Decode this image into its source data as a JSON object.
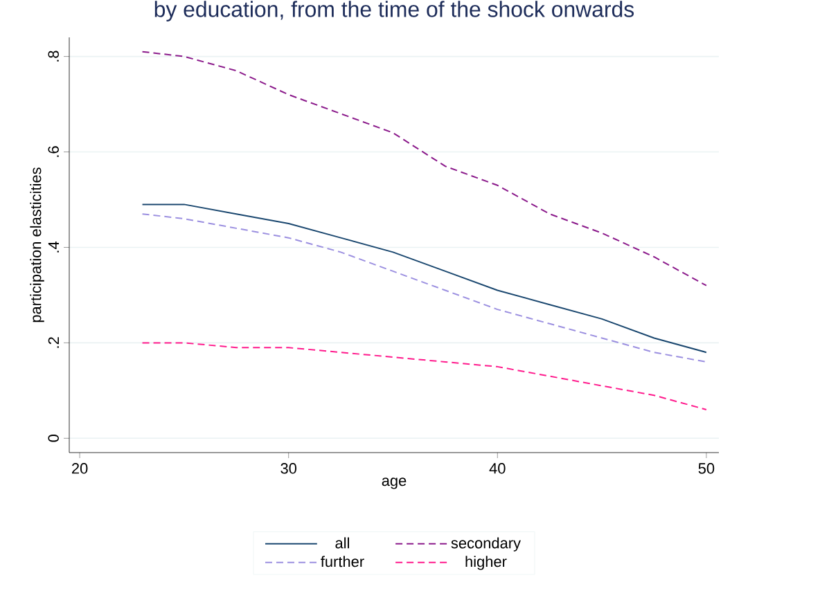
{
  "chart_data": {
    "type": "line",
    "title": "by education, from the time of the shock onwards",
    "xlabel": "age",
    "ylabel": "participation elasticities",
    "x": [
      23,
      25,
      27.5,
      30,
      32.5,
      35,
      37.5,
      40,
      42.5,
      45,
      47.5,
      50
    ],
    "series": [
      {
        "name": "all",
        "color": "#1a476f",
        "line_style": "solid",
        "values": [
          0.49,
          0.49,
          0.47,
          0.45,
          0.42,
          0.39,
          0.35,
          0.31,
          0.28,
          0.25,
          0.21,
          0.18
        ]
      },
      {
        "name": "secondary",
        "color": "#8b1a8b",
        "line_style": "dashed",
        "values": [
          0.81,
          0.8,
          0.77,
          0.72,
          0.68,
          0.64,
          0.57,
          0.53,
          0.47,
          0.43,
          0.38,
          0.32
        ]
      },
      {
        "name": "further",
        "color": "#9b8fe0",
        "line_style": "dashed",
        "values": [
          0.47,
          0.46,
          0.44,
          0.42,
          0.39,
          0.35,
          0.31,
          0.27,
          0.24,
          0.21,
          0.18,
          0.16
        ]
      },
      {
        "name": "higher",
        "color": "#ff1a8c",
        "line_style": "dashed",
        "values": [
          0.2,
          0.2,
          0.19,
          0.19,
          0.18,
          0.17,
          0.16,
          0.15,
          0.13,
          0.11,
          0.09,
          0.06
        ]
      }
    ],
    "xlim": [
      19.5,
      50.6
    ],
    "ylim": [
      -0.03,
      0.84
    ],
    "xticks": [
      20,
      30,
      40,
      50
    ],
    "yticks": [
      {
        "value": 0,
        "label": "0"
      },
      {
        "value": 0.2,
        "label": ".2"
      },
      {
        "value": 0.4,
        "label": ".4"
      },
      {
        "value": 0.6,
        "label": ".6"
      },
      {
        "value": 0.8,
        "label": ".8"
      }
    ],
    "grid": "y",
    "legend": "bottom",
    "marker": "none"
  }
}
